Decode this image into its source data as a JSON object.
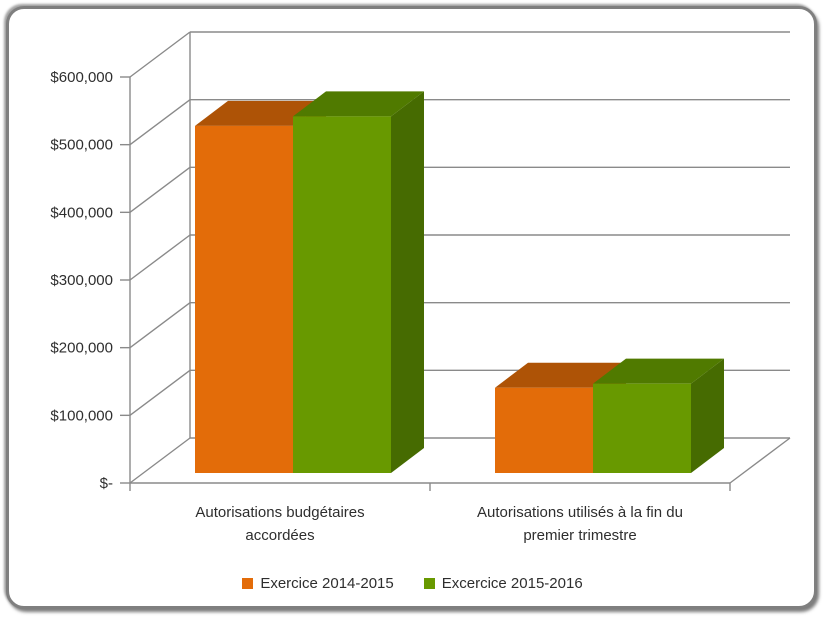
{
  "frame": {
    "background": "#FFFFFF",
    "border_color": "#7F7F7F"
  },
  "chart_data": {
    "type": "bar",
    "style": "3d-clustered-column",
    "title": "",
    "xlabel": "",
    "ylabel": "",
    "categories": [
      "Autorisations budgétaires accordées",
      "Autorisations utilisés à la fin du premier trimestre"
    ],
    "categories_wrapped": [
      [
        "Autorisations budgétaires",
        "accordées"
      ],
      [
        "Autorisations utilisés à la fin du",
        "premier trimestre"
      ]
    ],
    "series": [
      {
        "name": "Exercice 2014-2015",
        "color": "#E36C09",
        "color_top": "#AE5306",
        "color_side": "#9C4A05",
        "values": [
          513000,
          126000
        ]
      },
      {
        "name": "Excercice 2015-2016",
        "color": "#689900",
        "color_top": "#507A00",
        "color_side": "#466B01",
        "values": [
          527000,
          132000
        ]
      }
    ],
    "ylim": [
      0,
      600000
    ],
    "ytick_step": 100000,
    "ytick_labels": [
      "$-",
      "$100,000",
      "$200,000",
      "$300,000",
      "$400,000",
      "$500,000",
      "$600,000"
    ],
    "grid": true,
    "legend_position": "bottom",
    "colors": {
      "gridline": "#8A8A8A",
      "axis": "#8A8A8A",
      "text": "#2E2E2E"
    }
  }
}
